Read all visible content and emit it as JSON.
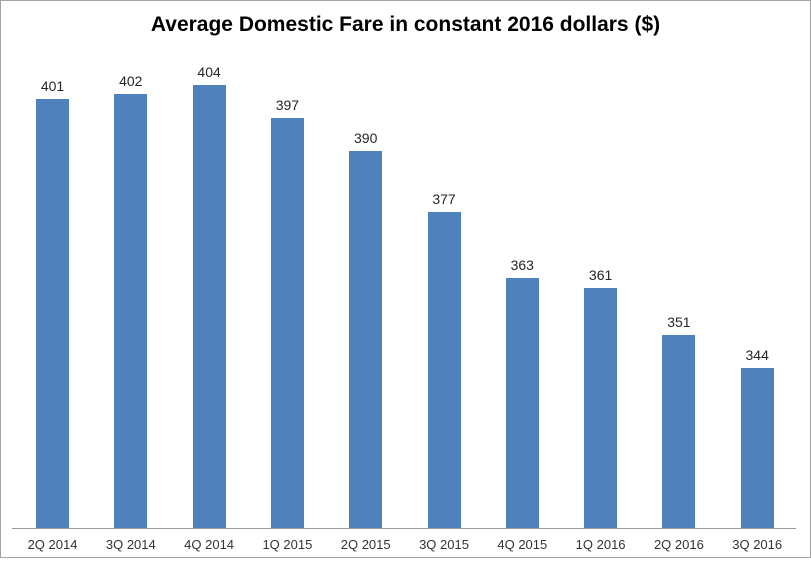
{
  "chart_data": {
    "type": "bar",
    "title": "Average Domestic Fare in constant 2016 dollars ($)",
    "categories": [
      "2Q 2014",
      "3Q 2014",
      "4Q 2014",
      "1Q 2015",
      "2Q 2015",
      "3Q 2015",
      "4Q 2015",
      "1Q 2016",
      "2Q 2016",
      "3Q 2016"
    ],
    "values": [
      401,
      402,
      404,
      397,
      390,
      377,
      363,
      361,
      351,
      344
    ],
    "xlabel": "",
    "ylabel": "",
    "ylim": [
      310,
      415
    ],
    "grid": false,
    "legend": false,
    "data_labels": true,
    "colors": {
      "bar_fill": "#4F81BD",
      "axis_line": "#9B9B9B",
      "data_label": "#262626",
      "category_label": "#333333",
      "title": "#000000",
      "frame_border": "#A3A3A3",
      "background": "#FFFFFF"
    }
  }
}
